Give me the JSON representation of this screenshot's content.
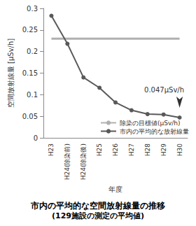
{
  "chart_data": {
    "type": "line",
    "title": "市内の平均的な空間放射線量の推移",
    "subtitle": "(129施設の測定の平均値)",
    "x_label": "年度",
    "y_label": "空間放射線量 [μSv/h]",
    "categories": [
      "H23",
      "H24(除染前)",
      "H24(除染後)",
      "H25",
      "H26",
      "H27",
      "H28",
      "H29",
      "H30"
    ],
    "series": [
      {
        "name": "除染の目標値(μSv/h)",
        "color": "#b0b0b0",
        "marker": "none",
        "line_style": "solid",
        "values": [
          0.23,
          0.23,
          0.23,
          0.23,
          0.23,
          0.23,
          0.23,
          0.23,
          0.23
        ]
      },
      {
        "name": "市内の平均的な放射線量",
        "color": "#595959",
        "marker": "circle",
        "line_style": "solid",
        "values": [
          0.283,
          0.218,
          0.14,
          0.116,
          0.082,
          0.064,
          0.055,
          0.054,
          0.047
        ]
      }
    ],
    "ylim": [
      0,
      0.3
    ],
    "yticks": [
      0,
      0.05,
      0.1,
      0.15,
      0.2,
      0.25,
      0.3
    ],
    "grid": false,
    "legend": "lower right",
    "annotations": [
      {
        "text": "0.047μSv/h",
        "x": "H30",
        "y": 0.047
      }
    ]
  }
}
